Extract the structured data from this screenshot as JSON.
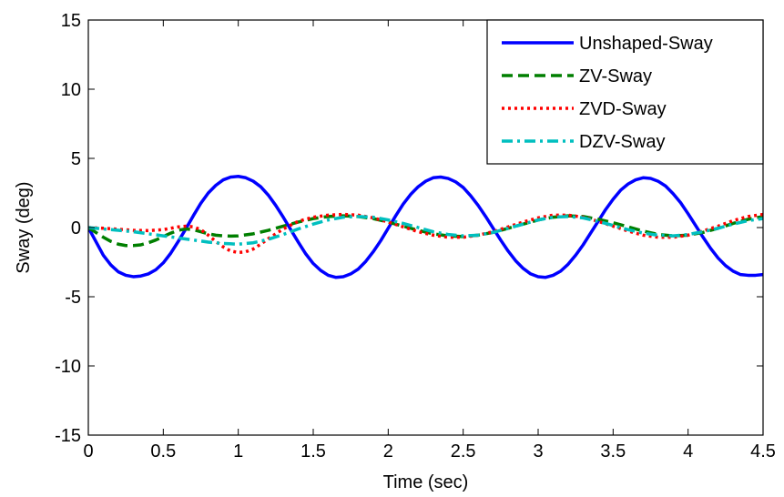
{
  "chart_data": {
    "type": "line",
    "title": "",
    "xlabel": "Time (sec)",
    "ylabel": "Sway (deg)",
    "xlim": [
      0,
      4.5
    ],
    "ylim": [
      -15,
      15
    ],
    "xticks": [
      0,
      0.5,
      1,
      1.5,
      2,
      2.5,
      3,
      3.5,
      4,
      4.5
    ],
    "xtick_labels": [
      "0",
      "0.5",
      "1",
      "1.5",
      "2",
      "2.5",
      "3",
      "3.5",
      "4",
      "4.5"
    ],
    "yticks": [
      -15,
      -10,
      -5,
      0,
      5,
      10,
      15
    ],
    "ytick_labels": [
      "-15",
      "-10",
      "-5",
      "0",
      "5",
      "10",
      "15"
    ],
    "grid": false,
    "legend_position": "top-right",
    "series": [
      {
        "name": "Unshaped-Sway",
        "color": "#0000ff",
        "style": "solid",
        "x": [
          0,
          0.05,
          0.1,
          0.15,
          0.2,
          0.25,
          0.3,
          0.35,
          0.4,
          0.45,
          0.5,
          0.55,
          0.6,
          0.65,
          0.7,
          0.75,
          0.8,
          0.85,
          0.9,
          0.95,
          1.0,
          1.05,
          1.1,
          1.15,
          1.2,
          1.25,
          1.3,
          1.35,
          1.4,
          1.45,
          1.5,
          1.55,
          1.6,
          1.65,
          1.7,
          1.75,
          1.8,
          1.85,
          1.9,
          1.95,
          2.0,
          2.05,
          2.1,
          2.15,
          2.2,
          2.25,
          2.3,
          2.35,
          2.4,
          2.45,
          2.5,
          2.55,
          2.6,
          2.65,
          2.7,
          2.75,
          2.8,
          2.85,
          2.9,
          2.95,
          3.0,
          3.05,
          3.1,
          3.15,
          3.2,
          3.25,
          3.3,
          3.35,
          3.4,
          3.45,
          3.5,
          3.55,
          3.6,
          3.65,
          3.7,
          3.75,
          3.8,
          3.85,
          3.9,
          3.95,
          4.0,
          4.05,
          4.1,
          4.15,
          4.2,
          4.25,
          4.3,
          4.35,
          4.4,
          4.45,
          4.5
        ],
        "y": [
          0,
          -1.0,
          -2.0,
          -2.7,
          -3.2,
          -3.45,
          -3.55,
          -3.5,
          -3.35,
          -3.05,
          -2.55,
          -1.85,
          -1.0,
          -0.1,
          0.85,
          1.75,
          2.5,
          3.05,
          3.45,
          3.65,
          3.7,
          3.6,
          3.35,
          2.95,
          2.35,
          1.6,
          0.75,
          -0.15,
          -1.05,
          -1.9,
          -2.6,
          -3.1,
          -3.45,
          -3.6,
          -3.55,
          -3.35,
          -3.0,
          -2.45,
          -1.75,
          -0.95,
          -0.05,
          0.85,
          1.7,
          2.4,
          2.95,
          3.35,
          3.6,
          3.65,
          3.55,
          3.3,
          2.9,
          2.3,
          1.6,
          0.8,
          -0.05,
          -0.9,
          -1.7,
          -2.4,
          -2.95,
          -3.35,
          -3.55,
          -3.6,
          -3.45,
          -3.15,
          -2.65,
          -2.0,
          -1.25,
          -0.4,
          0.45,
          1.3,
          2.05,
          2.7,
          3.15,
          3.45,
          3.6,
          3.55,
          3.35,
          3.0,
          2.45,
          1.8,
          1.0,
          0.15,
          -0.7,
          -1.5,
          -2.2,
          -2.75,
          -3.15,
          -3.4,
          -3.45,
          -3.45,
          -3.4
        ]
      },
      {
        "name": "ZV-Sway",
        "color": "#007f00",
        "style": "dashed",
        "x": [
          0,
          0.05,
          0.1,
          0.15,
          0.2,
          0.25,
          0.3,
          0.35,
          0.4,
          0.45,
          0.5,
          0.55,
          0.6,
          0.65,
          0.7,
          0.75,
          0.8,
          0.85,
          0.9,
          0.95,
          1.0,
          1.1,
          1.2,
          1.3,
          1.4,
          1.5,
          1.6,
          1.7,
          1.8,
          1.9,
          2.0,
          2.1,
          2.2,
          2.3,
          2.4,
          2.5,
          2.6,
          2.7,
          2.8,
          2.9,
          3.0,
          3.1,
          3.2,
          3.3,
          3.4,
          3.5,
          3.6,
          3.7,
          3.8,
          3.9,
          4.0,
          4.1,
          4.2,
          4.3,
          4.4,
          4.5
        ],
        "y": [
          0,
          -0.35,
          -0.7,
          -1.0,
          -1.2,
          -1.3,
          -1.3,
          -1.25,
          -1.1,
          -0.9,
          -0.65,
          -0.4,
          -0.2,
          -0.1,
          -0.15,
          -0.3,
          -0.45,
          -0.55,
          -0.6,
          -0.62,
          -0.6,
          -0.45,
          -0.2,
          0.1,
          0.4,
          0.65,
          0.8,
          0.85,
          0.8,
          0.65,
          0.4,
          0.1,
          -0.2,
          -0.45,
          -0.6,
          -0.65,
          -0.55,
          -0.35,
          -0.05,
          0.25,
          0.55,
          0.75,
          0.85,
          0.8,
          0.6,
          0.35,
          0.05,
          -0.25,
          -0.5,
          -0.6,
          -0.55,
          -0.35,
          -0.05,
          0.3,
          0.6,
          0.8
        ]
      },
      {
        "name": "ZVD-Sway",
        "color": "#ff0000",
        "style": "dotted",
        "x": [
          0,
          0.1,
          0.2,
          0.3,
          0.4,
          0.5,
          0.55,
          0.6,
          0.65,
          0.7,
          0.75,
          0.8,
          0.85,
          0.9,
          0.95,
          1.0,
          1.05,
          1.1,
          1.15,
          1.2,
          1.3,
          1.4,
          1.5,
          1.6,
          1.7,
          1.8,
          1.9,
          2.0,
          2.1,
          2.2,
          2.3,
          2.4,
          2.5,
          2.6,
          2.7,
          2.8,
          2.9,
          3.0,
          3.1,
          3.2,
          3.3,
          3.4,
          3.5,
          3.6,
          3.7,
          3.8,
          3.9,
          4.0,
          4.1,
          4.2,
          4.3,
          4.4,
          4.5
        ],
        "y": [
          0,
          -0.05,
          -0.12,
          -0.2,
          -0.22,
          -0.15,
          -0.05,
          0.05,
          0.1,
          0.05,
          -0.15,
          -0.55,
          -1.0,
          -1.4,
          -1.7,
          -1.8,
          -1.75,
          -1.55,
          -1.2,
          -0.8,
          -0.1,
          0.45,
          0.75,
          0.9,
          0.95,
          0.9,
          0.7,
          0.4,
          0.05,
          -0.3,
          -0.55,
          -0.7,
          -0.7,
          -0.55,
          -0.3,
          0.05,
          0.4,
          0.7,
          0.9,
          0.9,
          0.75,
          0.45,
          0.1,
          -0.25,
          -0.55,
          -0.7,
          -0.7,
          -0.55,
          -0.25,
          0.1,
          0.5,
          0.8,
          0.95
        ]
      },
      {
        "name": "DZV-Sway",
        "color": "#00bfbf",
        "style": "dashdot",
        "x": [
          0,
          0.1,
          0.2,
          0.3,
          0.4,
          0.5,
          0.6,
          0.7,
          0.8,
          0.9,
          1.0,
          1.1,
          1.2,
          1.3,
          1.4,
          1.5,
          1.6,
          1.7,
          1.8,
          1.9,
          2.0,
          2.1,
          2.2,
          2.3,
          2.4,
          2.5,
          2.6,
          2.7,
          2.8,
          2.9,
          3.0,
          3.1,
          3.2,
          3.3,
          3.4,
          3.5,
          3.6,
          3.7,
          3.8,
          3.9,
          4.0,
          4.1,
          4.2,
          4.3,
          4.4,
          4.5
        ],
        "y": [
          0,
          -0.1,
          -0.2,
          -0.3,
          -0.45,
          -0.6,
          -0.75,
          -0.9,
          -1.05,
          -1.15,
          -1.2,
          -1.1,
          -0.85,
          -0.5,
          -0.1,
          0.25,
          0.55,
          0.75,
          0.8,
          0.75,
          0.55,
          0.3,
          0.0,
          -0.3,
          -0.5,
          -0.6,
          -0.55,
          -0.35,
          -0.05,
          0.25,
          0.55,
          0.75,
          0.8,
          0.7,
          0.45,
          0.15,
          -0.15,
          -0.4,
          -0.55,
          -0.6,
          -0.5,
          -0.3,
          -0.05,
          0.25,
          0.5,
          0.65
        ]
      }
    ]
  }
}
